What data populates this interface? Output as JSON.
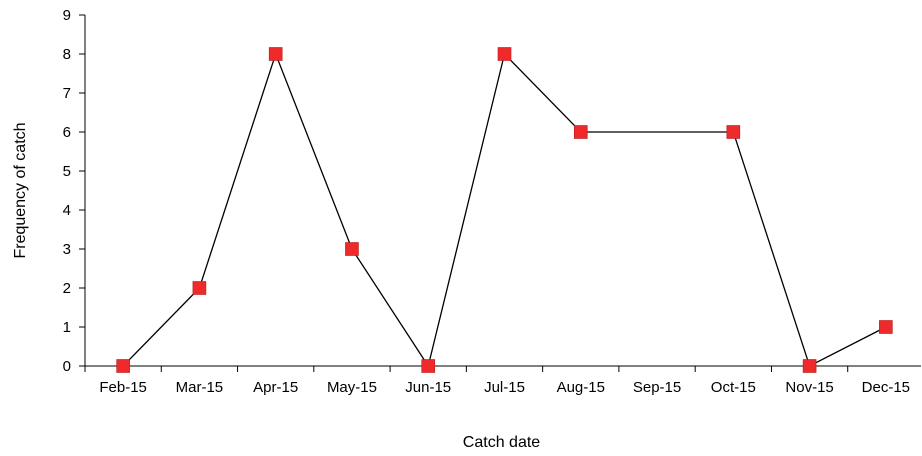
{
  "chart_data": {
    "type": "line",
    "title": "",
    "xlabel": "Catch date",
    "ylabel": "Frequency of catch",
    "categories": [
      "Feb-15",
      "Mar-15",
      "Apr-15",
      "May-15",
      "Jun-15",
      "Jul-15",
      "Aug-15",
      "Sep-15",
      "Oct-15",
      "Nov-15",
      "Dec-15"
    ],
    "series": [
      {
        "points": [
          {
            "x": "Feb-15",
            "y": 0
          },
          {
            "x": "Mar-15",
            "y": 2
          },
          {
            "x": "Apr-15",
            "y": 8
          },
          {
            "x": "May-15",
            "y": 3
          },
          {
            "x": "Jun-15",
            "y": 0
          },
          {
            "x": "Jul-15",
            "y": 8
          },
          {
            "x": "Aug-15",
            "y": 6
          },
          {
            "x": "Oct-15",
            "y": 6
          },
          {
            "x": "Nov-15",
            "y": 0
          },
          {
            "x": "Dec-15",
            "y": 1
          }
        ],
        "line_color": "#000000",
        "marker_color": "#ee2a2a",
        "marker": "square"
      }
    ],
    "ylim": [
      0,
      9
    ],
    "yticks": [
      "0",
      "1",
      "2",
      "3",
      "4",
      "5",
      "6",
      "7",
      "8",
      "9"
    ],
    "grid": false,
    "legend": "none"
  }
}
